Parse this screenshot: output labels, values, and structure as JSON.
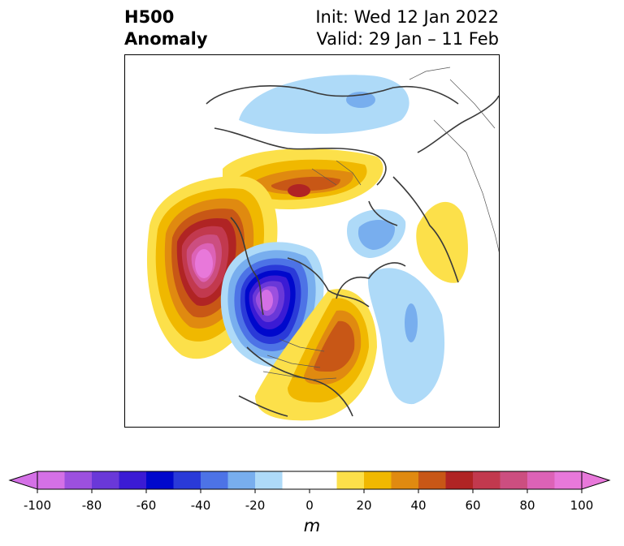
{
  "title": {
    "left_line1": "H500",
    "left_line2": "Anomaly",
    "right_line1": "Init: Wed 12 Jan 2022",
    "right_line2": "Valid: 29 Jan – 11 Feb"
  },
  "colorbar": {
    "unit": "m",
    "min": -100,
    "max": 100,
    "tick_labels": [
      "-100",
      "-80",
      "-60",
      "-40",
      "-20",
      "0",
      "20",
      "40",
      "60",
      "80",
      "100"
    ],
    "colors": [
      "#d470e6",
      "#9c50df",
      "#6a38d8",
      "#3b1bd4",
      "#0008cc",
      "#2a3ad8",
      "#4d73e6",
      "#78aeee",
      "#aedaf8",
      "#ffffff",
      "#ffffff",
      "#fce04a",
      "#f0b800",
      "#e08a10",
      "#c85716",
      "#b02424",
      "#c2394e",
      "#cc4e80",
      "#dc62b6",
      "#e878da"
    ]
  },
  "map": {
    "projection": "north-polar-stereographic",
    "features": [
      {
        "name": "ridge-pacific",
        "sign": "positive",
        "peak": 100
      },
      {
        "name": "trough-western-canada",
        "sign": "negative",
        "peak": -100
      },
      {
        "name": "ridge-eastern-us",
        "sign": "positive",
        "peak": 60
      },
      {
        "name": "ridge-arctic-russia",
        "sign": "positive",
        "peak": 60
      },
      {
        "name": "trough-eurasia",
        "sign": "negative",
        "peak": -40
      },
      {
        "name": "trough-scandinavia",
        "sign": "negative",
        "peak": -40
      },
      {
        "name": "trough-atlantic",
        "sign": "negative",
        "peak": -40
      },
      {
        "name": "ridge-central-asia",
        "sign": "positive",
        "peak": 20
      }
    ]
  }
}
